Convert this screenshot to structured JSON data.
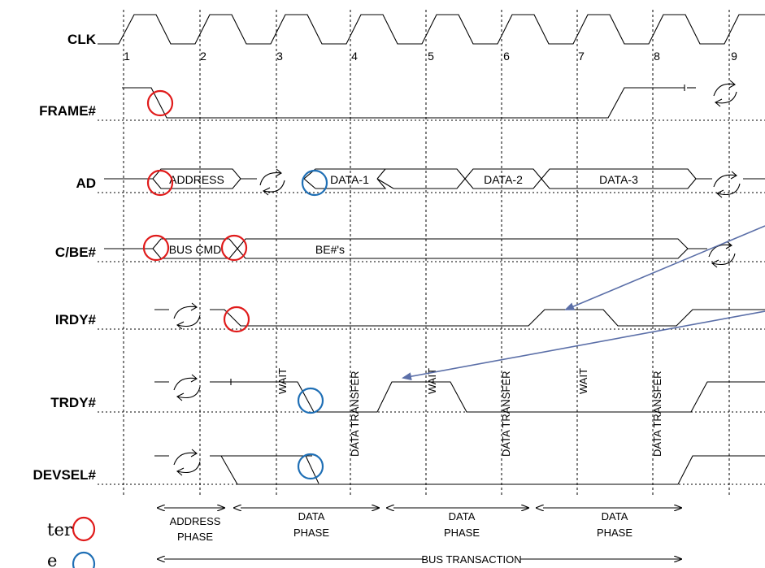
{
  "signals": {
    "clk": "CLK",
    "frame": "FRAME#",
    "ad": "AD",
    "cbe": "C/BE#",
    "irdy": "IRDY#",
    "trdy": "TRDY#",
    "devsel": "DEVSEL#"
  },
  "clock_numbers": [
    "1",
    "2",
    "3",
    "4",
    "5",
    "6",
    "7",
    "8",
    "9"
  ],
  "bus_labels": {
    "address": "ADDRESS",
    "data1": "DATA-1",
    "data2": "DATA-2",
    "data3": "DATA-3",
    "bus_cmd": "BUS CMD",
    "be": "BE#'s"
  },
  "vertical_labels": {
    "wait": "WAIT",
    "data_transfer": "DATA TRANSFER"
  },
  "phases": {
    "address_1": "ADDRESS",
    "address_2": "PHASE",
    "data_1": "DATA",
    "data_2": "PHASE",
    "bus_transaction": "BUS TRANSACTION"
  },
  "legend": {
    "initiator_partial": "ter",
    "target_partial": "e"
  },
  "colors": {
    "initiator_circle": "#e01b1b",
    "target_circle": "#1f6fb5",
    "pointer_arrow": "#5b6fa8"
  }
}
